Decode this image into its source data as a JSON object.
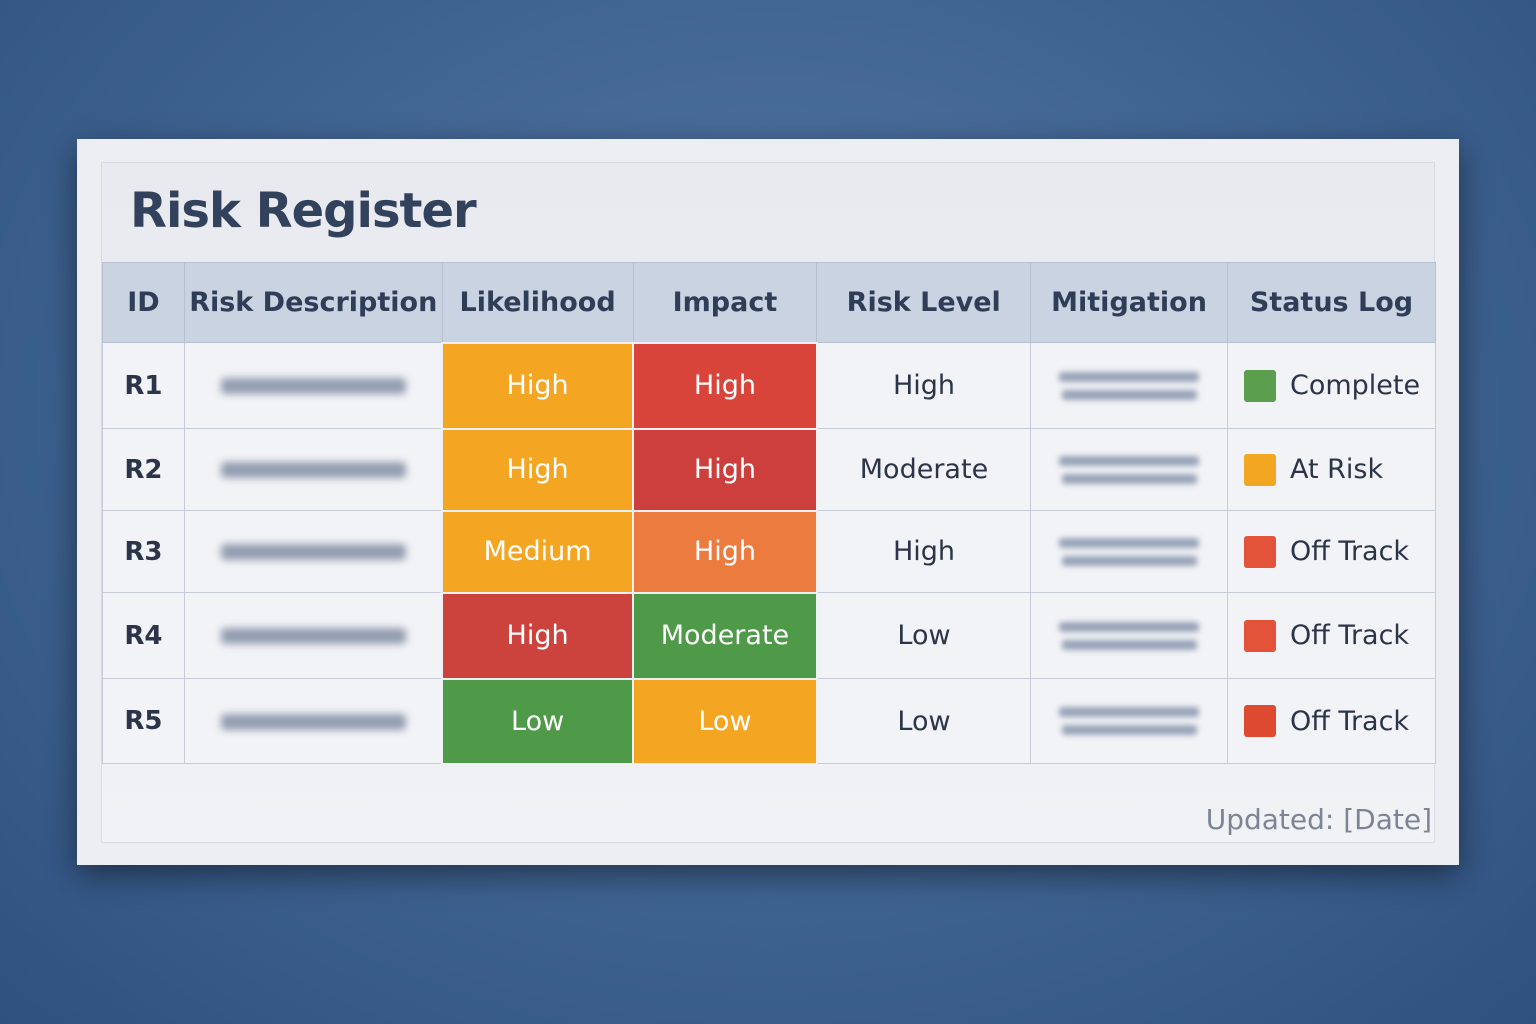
{
  "title": "Risk Register",
  "columns": [
    "ID",
    "Risk Description",
    "Likelihood",
    "Impact",
    "Risk Level",
    "Mitigation",
    "Status Log"
  ],
  "rows": [
    {
      "id": "R1",
      "likelihood": {
        "label": "High",
        "color": "#f4a623"
      },
      "impact": {
        "label": "High",
        "color": "#d9443a"
      },
      "risk_level": "High",
      "status": {
        "label": "Complete",
        "color": "#5a9e4e"
      }
    },
    {
      "id": "R2",
      "likelihood": {
        "label": "High",
        "color": "#f4a623"
      },
      "impact": {
        "label": "High",
        "color": "#cc3f3c"
      },
      "risk_level": "Moderate",
      "status": {
        "label": "At Risk",
        "color": "#f3a622"
      }
    },
    {
      "id": "R3",
      "likelihood": {
        "label": "Medium",
        "color": "#f4a623"
      },
      "impact": {
        "label": "High",
        "color": "#ec7b3f"
      },
      "risk_level": "High",
      "status": {
        "label": "Off Track",
        "color": "#e2533a"
      }
    },
    {
      "id": "R4",
      "likelihood": {
        "label": "High",
        "color": "#cc423d"
      },
      "impact": {
        "label": "Moderate",
        "color": "#4e9a48"
      },
      "risk_level": "Low",
      "status": {
        "label": "Off Track",
        "color": "#e2533a"
      }
    },
    {
      "id": "R5",
      "likelihood": {
        "label": "Low",
        "color": "#4e9a48"
      },
      "impact": {
        "label": "Low",
        "color": "#f4a623"
      },
      "risk_level": "Low",
      "status": {
        "label": "Off Track",
        "color": "#dd4a30"
      }
    }
  ],
  "footer": "Updated: [Date]"
}
